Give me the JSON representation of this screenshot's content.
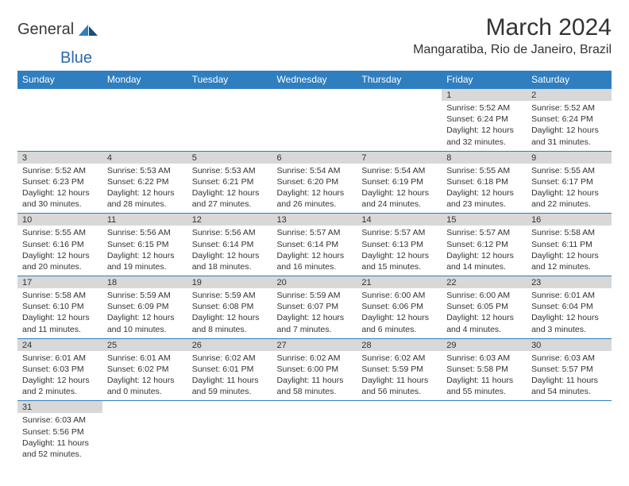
{
  "logo": {
    "text1": "General",
    "text2": "Blue"
  },
  "title": "March 2024",
  "location": "Mangaratiba, Rio de Janeiro, Brazil",
  "colors": {
    "header_bg": "#2f7ec0",
    "header_text": "#ffffff",
    "daynum_bg": "#d8d8d8",
    "text": "#333333",
    "rule": "#2f7ec0"
  },
  "day_headers": [
    "Sunday",
    "Monday",
    "Tuesday",
    "Wednesday",
    "Thursday",
    "Friday",
    "Saturday"
  ],
  "weeks": [
    [
      null,
      null,
      null,
      null,
      null,
      {
        "n": "1",
        "sr": "5:52 AM",
        "ss": "6:24 PM",
        "dl": "12 hours and 32 minutes."
      },
      {
        "n": "2",
        "sr": "5:52 AM",
        "ss": "6:24 PM",
        "dl": "12 hours and 31 minutes."
      }
    ],
    [
      {
        "n": "3",
        "sr": "5:52 AM",
        "ss": "6:23 PM",
        "dl": "12 hours and 30 minutes."
      },
      {
        "n": "4",
        "sr": "5:53 AM",
        "ss": "6:22 PM",
        "dl": "12 hours and 28 minutes."
      },
      {
        "n": "5",
        "sr": "5:53 AM",
        "ss": "6:21 PM",
        "dl": "12 hours and 27 minutes."
      },
      {
        "n": "6",
        "sr": "5:54 AM",
        "ss": "6:20 PM",
        "dl": "12 hours and 26 minutes."
      },
      {
        "n": "7",
        "sr": "5:54 AM",
        "ss": "6:19 PM",
        "dl": "12 hours and 24 minutes."
      },
      {
        "n": "8",
        "sr": "5:55 AM",
        "ss": "6:18 PM",
        "dl": "12 hours and 23 minutes."
      },
      {
        "n": "9",
        "sr": "5:55 AM",
        "ss": "6:17 PM",
        "dl": "12 hours and 22 minutes."
      }
    ],
    [
      {
        "n": "10",
        "sr": "5:55 AM",
        "ss": "6:16 PM",
        "dl": "12 hours and 20 minutes."
      },
      {
        "n": "11",
        "sr": "5:56 AM",
        "ss": "6:15 PM",
        "dl": "12 hours and 19 minutes."
      },
      {
        "n": "12",
        "sr": "5:56 AM",
        "ss": "6:14 PM",
        "dl": "12 hours and 18 minutes."
      },
      {
        "n": "13",
        "sr": "5:57 AM",
        "ss": "6:14 PM",
        "dl": "12 hours and 16 minutes."
      },
      {
        "n": "14",
        "sr": "5:57 AM",
        "ss": "6:13 PM",
        "dl": "12 hours and 15 minutes."
      },
      {
        "n": "15",
        "sr": "5:57 AM",
        "ss": "6:12 PM",
        "dl": "12 hours and 14 minutes."
      },
      {
        "n": "16",
        "sr": "5:58 AM",
        "ss": "6:11 PM",
        "dl": "12 hours and 12 minutes."
      }
    ],
    [
      {
        "n": "17",
        "sr": "5:58 AM",
        "ss": "6:10 PM",
        "dl": "12 hours and 11 minutes."
      },
      {
        "n": "18",
        "sr": "5:59 AM",
        "ss": "6:09 PM",
        "dl": "12 hours and 10 minutes."
      },
      {
        "n": "19",
        "sr": "5:59 AM",
        "ss": "6:08 PM",
        "dl": "12 hours and 8 minutes."
      },
      {
        "n": "20",
        "sr": "5:59 AM",
        "ss": "6:07 PM",
        "dl": "12 hours and 7 minutes."
      },
      {
        "n": "21",
        "sr": "6:00 AM",
        "ss": "6:06 PM",
        "dl": "12 hours and 6 minutes."
      },
      {
        "n": "22",
        "sr": "6:00 AM",
        "ss": "6:05 PM",
        "dl": "12 hours and 4 minutes."
      },
      {
        "n": "23",
        "sr": "6:01 AM",
        "ss": "6:04 PM",
        "dl": "12 hours and 3 minutes."
      }
    ],
    [
      {
        "n": "24",
        "sr": "6:01 AM",
        "ss": "6:03 PM",
        "dl": "12 hours and 2 minutes."
      },
      {
        "n": "25",
        "sr": "6:01 AM",
        "ss": "6:02 PM",
        "dl": "12 hours and 0 minutes."
      },
      {
        "n": "26",
        "sr": "6:02 AM",
        "ss": "6:01 PM",
        "dl": "11 hours and 59 minutes."
      },
      {
        "n": "27",
        "sr": "6:02 AM",
        "ss": "6:00 PM",
        "dl": "11 hours and 58 minutes."
      },
      {
        "n": "28",
        "sr": "6:02 AM",
        "ss": "5:59 PM",
        "dl": "11 hours and 56 minutes."
      },
      {
        "n": "29",
        "sr": "6:03 AM",
        "ss": "5:58 PM",
        "dl": "11 hours and 55 minutes."
      },
      {
        "n": "30",
        "sr": "6:03 AM",
        "ss": "5:57 PM",
        "dl": "11 hours and 54 minutes."
      }
    ],
    [
      {
        "n": "31",
        "sr": "6:03 AM",
        "ss": "5:56 PM",
        "dl": "11 hours and 52 minutes."
      },
      null,
      null,
      null,
      null,
      null,
      null
    ]
  ],
  "labels": {
    "sunrise": "Sunrise:",
    "sunset": "Sunset:",
    "daylight": "Daylight:"
  }
}
